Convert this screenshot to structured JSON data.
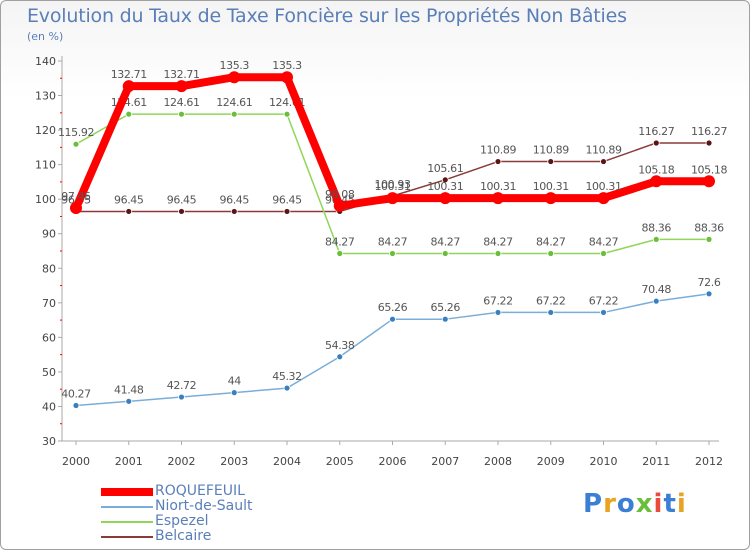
{
  "title": "Evolution du Taux de Taxe Foncière sur les Propriétés Non Bâties",
  "unit_label": "(en %)",
  "logo": {
    "letters": [
      "P",
      "r",
      "o",
      "x",
      "i",
      "t",
      "i"
    ],
    "colors": [
      "#3a7fd5",
      "#e8a323",
      "#3a7fd5",
      "#6abf3a",
      "#e84c3d",
      "#3a7fd5",
      "#e8a323"
    ]
  },
  "chart_data": {
    "type": "line",
    "title": "Evolution du Taux de Taxe Foncière sur les Propriétés Non Bâties",
    "ylabel": "(en %)",
    "xlabel": "",
    "categories": [
      "2000",
      "2001",
      "2002",
      "2003",
      "2004",
      "2005",
      "2006",
      "2007",
      "2008",
      "2009",
      "2010",
      "2011",
      "2012"
    ],
    "ylim": [
      30,
      140
    ],
    "yticks": [
      30,
      40,
      50,
      60,
      70,
      80,
      90,
      100,
      110,
      120,
      130,
      140
    ],
    "grid": false,
    "series": [
      {
        "name": "Belcaire",
        "color": "#8b3a3a",
        "marker": "#5a1515",
        "width": 1.5,
        "r": 3,
        "values": [
          96.45,
          96.45,
          96.45,
          96.45,
          96.45,
          96.45,
          100.93,
          105.61,
          110.89,
          110.89,
          110.89,
          116.27,
          116.27
        ],
        "labels": [
          "96.45",
          "96.45",
          "96.45",
          "96.45",
          "96.45",
          "96.45",
          "100.93",
          "105.61",
          "110.89",
          "110.89",
          "110.89",
          "116.27",
          "116.27"
        ]
      },
      {
        "name": "Espezel",
        "color": "#90d65a",
        "marker": "#6abf3a",
        "width": 1.5,
        "r": 3,
        "values": [
          115.92,
          124.61,
          124.61,
          124.61,
          124.61,
          84.27,
          84.27,
          84.27,
          84.27,
          84.27,
          84.27,
          88.36,
          88.36
        ],
        "labels": [
          "115.92",
          "124.61",
          "124.61",
          "124.61",
          "124.61",
          "84.27",
          "84.27",
          "84.27",
          "84.27",
          "84.27",
          "84.27",
          "88.36",
          "88.36"
        ]
      },
      {
        "name": "Niort-de-Sault",
        "color": "#7aaed8",
        "marker": "#3a7fc0",
        "width": 1.5,
        "r": 3,
        "values": [
          40.27,
          41.48,
          42.72,
          44,
          45.32,
          54.38,
          65.26,
          65.26,
          67.22,
          67.22,
          67.22,
          70.48,
          72.6
        ],
        "labels": [
          "40.27",
          "41.48",
          "42.72",
          "44",
          "45.32",
          "54.38",
          "65.26",
          "65.26",
          "67.22",
          "67.22",
          "67.22",
          "70.48",
          "72.6"
        ]
      },
      {
        "name": "ROQUEFEUIL",
        "color": "#ff0000",
        "marker": "#ff0000",
        "width": 8,
        "r": 6,
        "values": [
          97.45,
          132.71,
          132.71,
          135.3,
          135.3,
          98.08,
          100.31,
          100.31,
          100.31,
          100.31,
          100.31,
          105.18,
          105.18
        ],
        "labels": [
          "97.45",
          "132.71",
          "132.71",
          "135.3",
          "135.3",
          "98.08",
          "100.31",
          "100.31",
          "100.31",
          "100.31",
          "100.31",
          "105.18",
          "105.18"
        ]
      }
    ],
    "legend_order": [
      "ROQUEFEUIL",
      "Niort-de-Sault",
      "Espezel",
      "Belcaire"
    ],
    "legend_position": "bottom-left"
  }
}
